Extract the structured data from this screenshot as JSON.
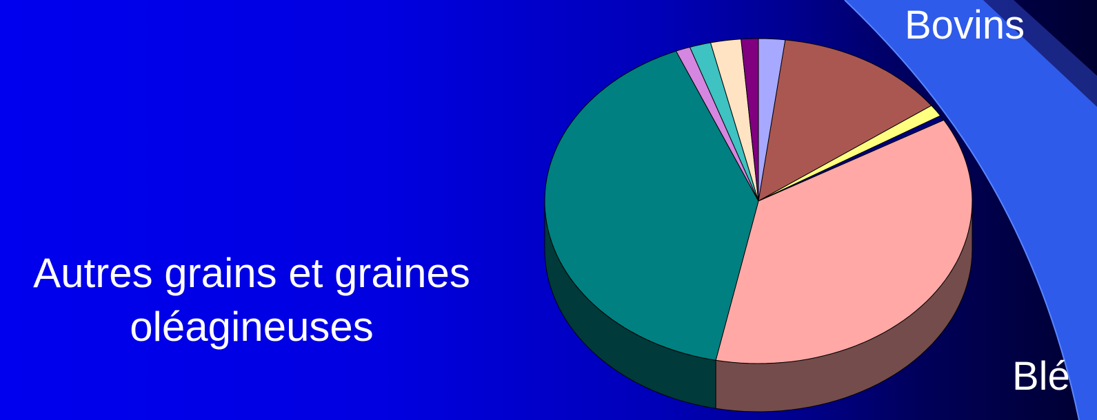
{
  "chart_data": {
    "type": "pie",
    "title": "",
    "subtitle": "",
    "labels": {
      "left": [
        "Autres grains et graines",
        "oléagineuses"
      ],
      "top": "Bovins",
      "bottom": "Blé"
    },
    "slices": [
      {
        "value": 2.0,
        "color": "#a7a8ff"
      },
      {
        "value": 13.0,
        "color": "#aa5752"
      },
      {
        "value": 1.2,
        "color": "#ffff80"
      },
      {
        "value": 0.5,
        "color": "#00007d"
      },
      {
        "value": 36.5,
        "color": "#ffa8a6"
      },
      {
        "value": 40.5,
        "color": "#008080"
      },
      {
        "value": 1.1,
        "color": "#d586e0"
      },
      {
        "value": 1.6,
        "color": "#3ec2c2"
      },
      {
        "value": 2.3,
        "color": "#ffe3c2"
      },
      {
        "value": 1.3,
        "color": "#800080"
      }
    ],
    "legend": "none",
    "grid": false
  },
  "colors": {
    "background_left": "#0000ee",
    "background_right": "#000030",
    "decorative_band": "#2f5bea",
    "label_text": "#ffffff"
  }
}
